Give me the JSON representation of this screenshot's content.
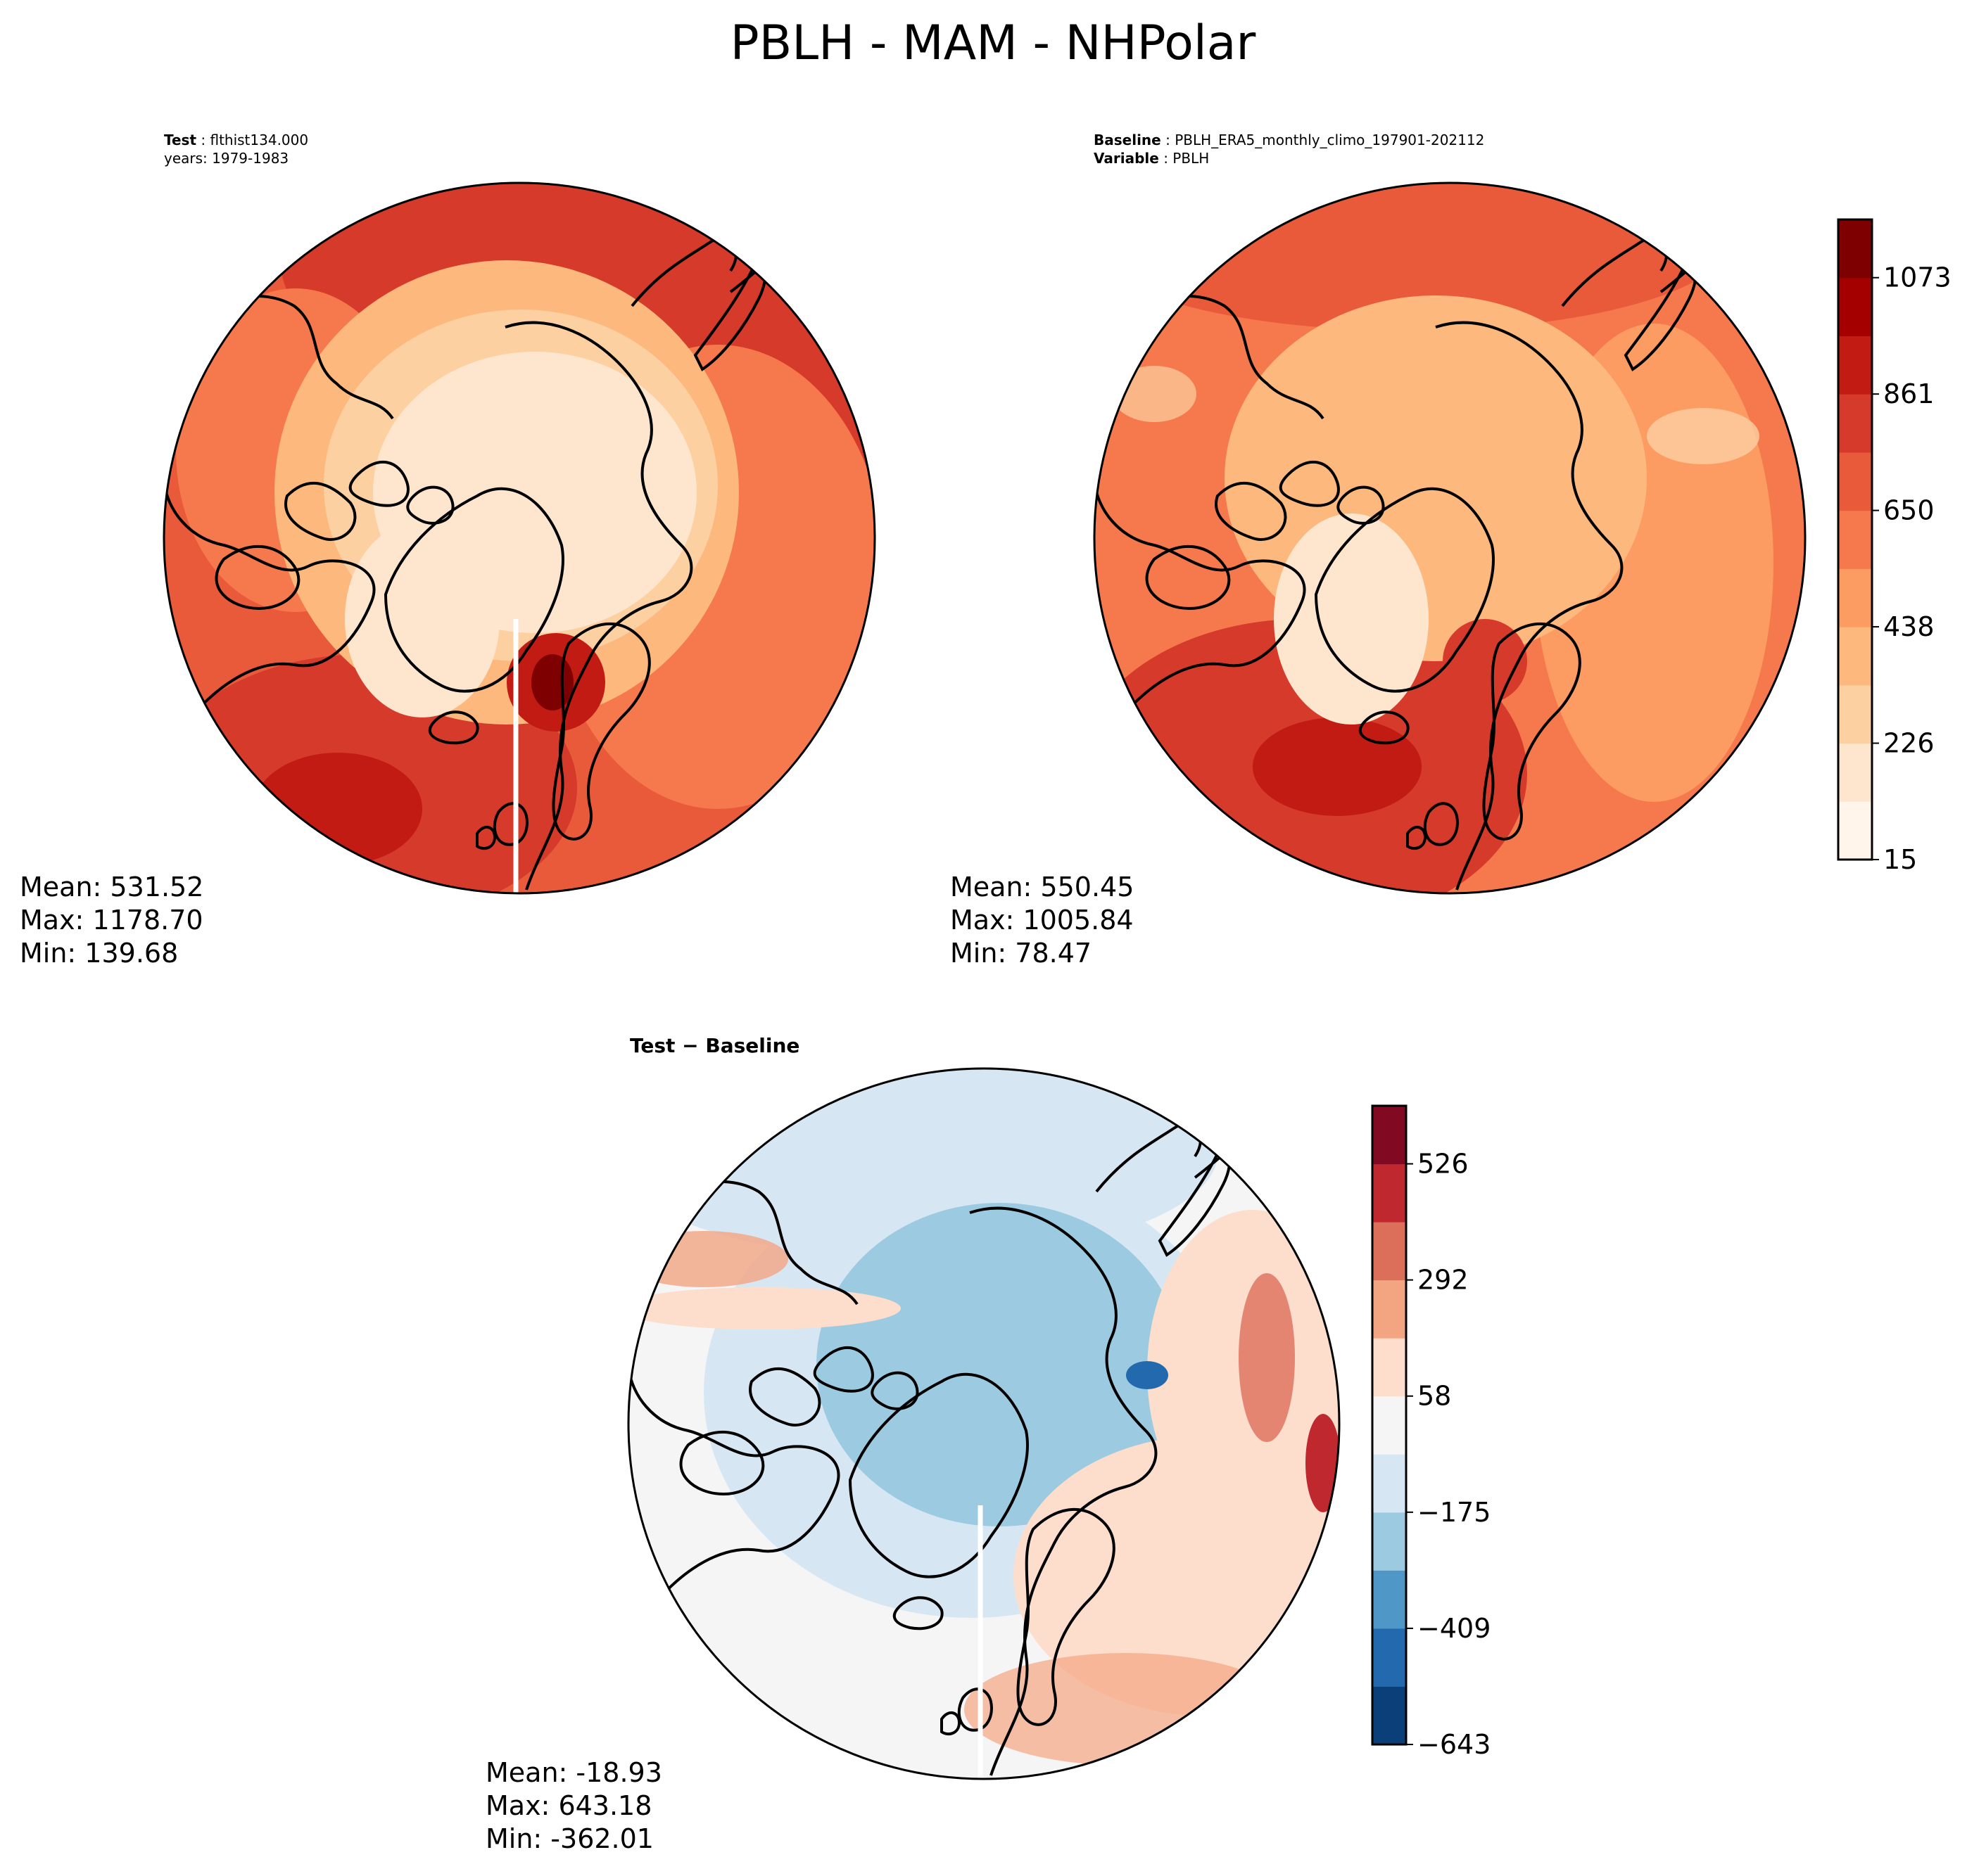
{
  "title": "PBLH - MAM - NHPolar",
  "test_panel": {
    "label": "Test",
    "case": "flthist134.000",
    "years": "years: 1979-1983",
    "stats": {
      "mean": "Mean: 531.52",
      "max": "Max: 1178.70",
      "min": "Min: 139.68"
    }
  },
  "baseline_panel": {
    "label": "Baseline",
    "case": "PBLH_ERA5_monthly_climo_197901-202112",
    "variable_label": "Variable",
    "variable": "PBLH",
    "stats": {
      "mean": "Mean: 550.45",
      "max": "Max: 1005.84",
      "min": "Min: 78.47"
    }
  },
  "diff_panel": {
    "title": "Test − Baseline",
    "stats": {
      "mean": "Mean: -18.93",
      "max": "Max: 643.18",
      "min": "Min: -362.01"
    }
  },
  "colorbar_main": {
    "ticks": [
      "15",
      "226",
      "438",
      "650",
      "861",
      "1073"
    ],
    "colors": [
      "#fff5eb",
      "#fee6ce",
      "#fdd0a2",
      "#fdb97d",
      "#fc9b62",
      "#f5794c",
      "#e95a3a",
      "#d53a2a",
      "#c11b14",
      "#a50000",
      "#7f0000"
    ]
  },
  "colorbar_diff": {
    "ticks": [
      "−643",
      "−409",
      "−175",
      "58",
      "292",
      "526"
    ],
    "colors": [
      "#0b3f79",
      "#2369ae",
      "#4e97c7",
      "#9ccae1",
      "#d6e7f3",
      "#f5f5f5",
      "#fdddcc",
      "#f3a582",
      "#dc6f5a",
      "#c0282f",
      "#810a22"
    ]
  }
}
